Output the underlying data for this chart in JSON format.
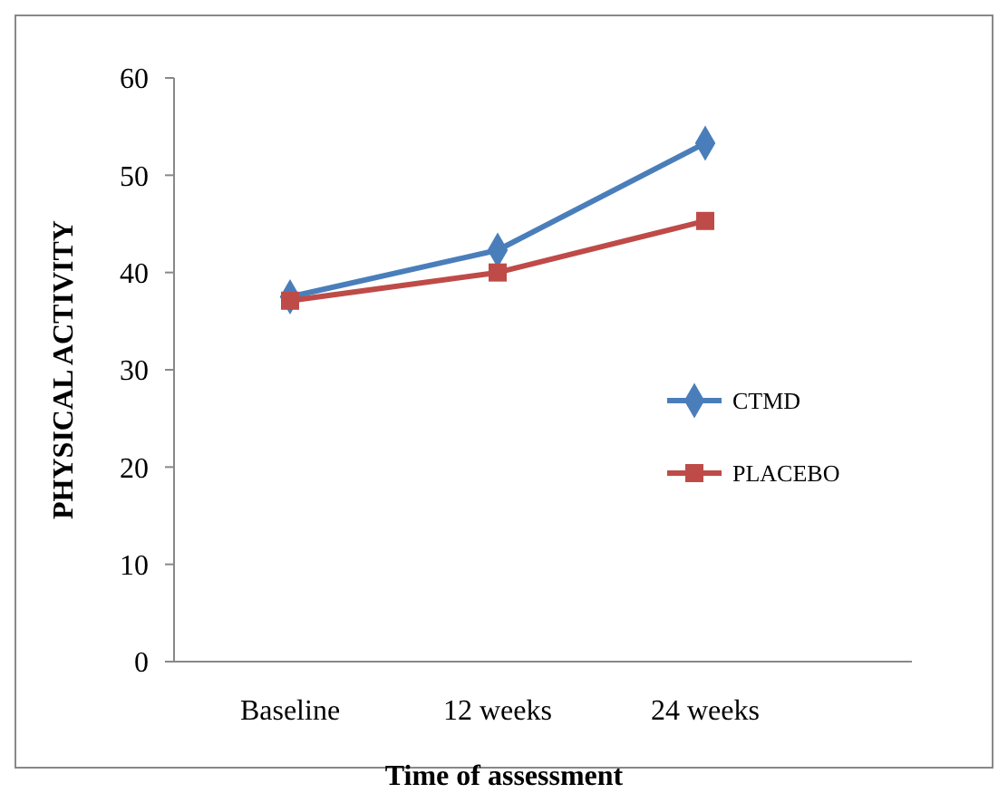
{
  "chart_data": {
    "type": "line",
    "xlabel": "Time of assessment",
    "ylabel": "PHYSICAL ACTIVITY",
    "categories": [
      "Baseline",
      "12 weeks",
      "24 weeks"
    ],
    "series": [
      {
        "name": "CTMD",
        "color": "#4a7ebb",
        "marker": "diamond",
        "values": [
          37.5,
          42.3,
          53.3
        ]
      },
      {
        "name": "PLACEBO",
        "color": "#be4b48",
        "marker": "square",
        "values": [
          37.1,
          40,
          45.3
        ]
      }
    ],
    "ylim": [
      0,
      60
    ],
    "yticks": [
      0,
      10,
      20,
      30,
      40,
      50,
      60
    ],
    "grid": false,
    "legend": "right",
    "line_style": "solid"
  }
}
